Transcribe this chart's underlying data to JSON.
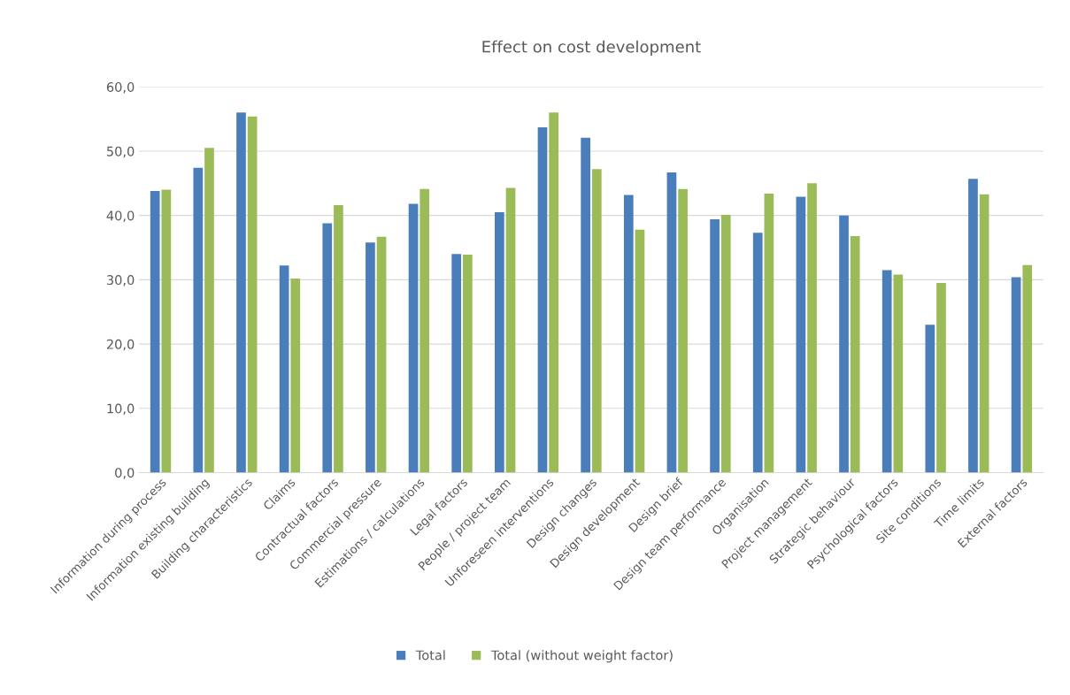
{
  "chart_data": {
    "type": "bar",
    "title": "Effect on cost development",
    "categories": [
      "Information during process",
      "Information existing building",
      "Building characteristics",
      "Claims",
      "Contractual factors",
      "Commercial pressure",
      "Estimations / calculations",
      "Legal factors",
      "People / project team",
      "Unforeseen interventions",
      "Design changes",
      "Design development",
      "Design brief",
      "Design team performance",
      "Organisation",
      "Project management",
      "Strategic behaviour",
      "Psychological factors",
      "Site conditions",
      "Time limits",
      "External factors"
    ],
    "series": [
      {
        "name": "Total",
        "color": "#4a7ebb",
        "values": [
          43.8,
          47.4,
          56.0,
          32.2,
          38.8,
          35.8,
          41.8,
          34.0,
          40.5,
          53.7,
          52.1,
          43.2,
          46.7,
          39.4,
          37.3,
          42.9,
          40.0,
          31.5,
          23.0,
          45.7,
          30.4
        ]
      },
      {
        "name": "Total (without weight factor)",
        "color": "#9bbb59",
        "values": [
          44.0,
          50.5,
          55.4,
          30.2,
          41.6,
          36.7,
          44.1,
          33.9,
          44.3,
          56.0,
          47.2,
          37.8,
          44.1,
          40.1,
          43.4,
          45.0,
          36.8,
          30.8,
          29.5,
          43.3,
          32.3
        ]
      }
    ],
    "ylim": [
      0,
      60
    ],
    "yticks": [
      {
        "value": 0,
        "label": "0,0"
      },
      {
        "value": 10,
        "label": "10,0"
      },
      {
        "value": 20,
        "label": "20,0"
      },
      {
        "value": 30,
        "label": "30,0"
      },
      {
        "value": 40,
        "label": "40,0"
      },
      {
        "value": 50,
        "label": "50,0"
      },
      {
        "value": 60,
        "label": "60,0"
      }
    ],
    "grid": "y",
    "legend": "bottom"
  }
}
